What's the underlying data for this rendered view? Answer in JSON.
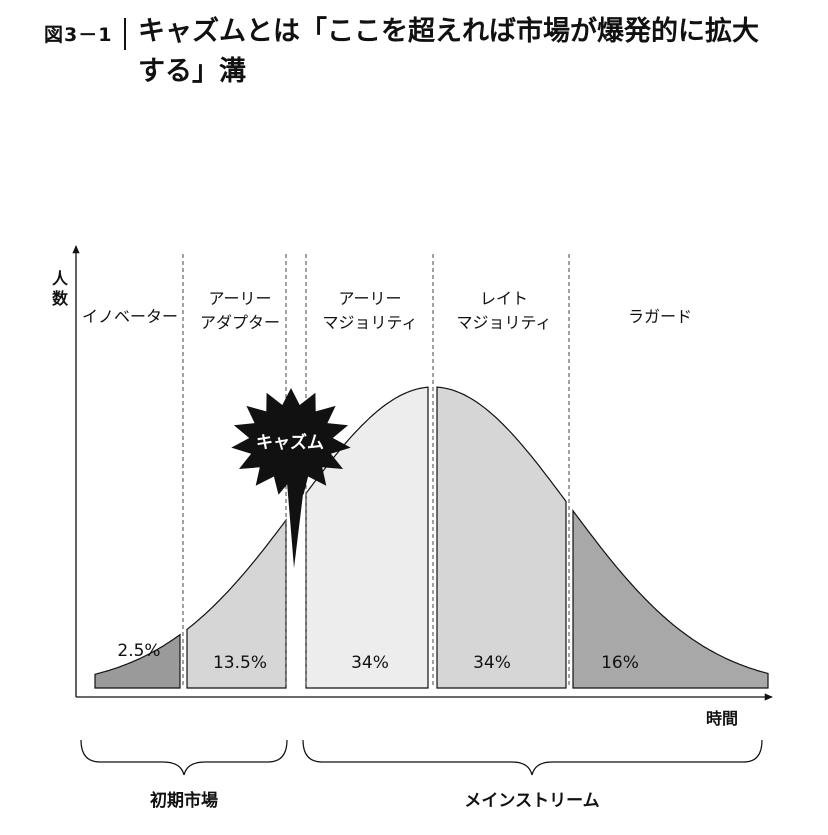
{
  "header": {
    "figure_label": "図3－1",
    "title": "キャズムとは「ここを超えれば市場が爆発的に拡大する」溝"
  },
  "chart_data": {
    "type": "area",
    "distribution": "normal",
    "ylabel": "人数",
    "xlabel": "時間",
    "segments": [
      {
        "label": "イノベーター",
        "percent": "2.5%",
        "value": 2.5,
        "color": "#9a9a9a"
      },
      {
        "label": "アーリー\nアダプター",
        "percent": "13.5%",
        "value": 13.5,
        "color": "#d6d6d6"
      },
      {
        "label": "アーリー\nマジョリティ",
        "percent": "34%",
        "value": 34,
        "color": "#ededed"
      },
      {
        "label": "レイト\nマジョリティ",
        "percent": "34%",
        "value": 34,
        "color": "#d6d6d6"
      },
      {
        "label": "ラガード",
        "percent": "16%",
        "value": 16,
        "color": "#a8a8a8"
      }
    ],
    "chasm_label": "キャズム",
    "brackets": [
      {
        "label": "初期市場"
      },
      {
        "label": "メインストリーム"
      }
    ]
  }
}
